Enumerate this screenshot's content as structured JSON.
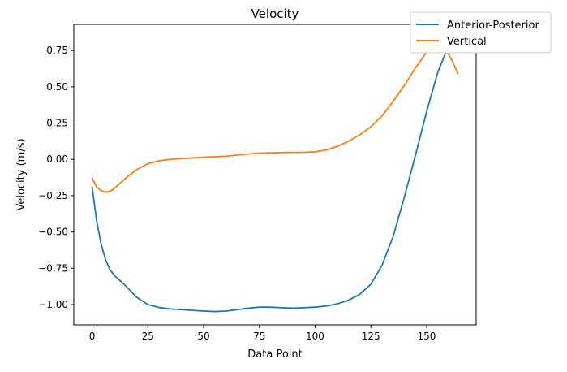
{
  "chart_data": {
    "type": "line",
    "title": "Velocity",
    "xlabel": "Data Point",
    "ylabel": "Velocity (m/s)",
    "xlim": [
      -8.2,
      172.2
    ],
    "ylim": [
      -1.14,
      0.93
    ],
    "x_ticks": [
      0,
      25,
      50,
      75,
      100,
      125,
      150
    ],
    "y_ticks": [
      -1.0,
      -0.75,
      -0.5,
      -0.25,
      0.0,
      0.25,
      0.5,
      0.75
    ],
    "x_tick_labels": [
      "0",
      "25",
      "50",
      "75",
      "100",
      "125",
      "150"
    ],
    "y_tick_labels": [
      "−1.00",
      "−0.75",
      "−0.50",
      "−0.25",
      "0.00",
      "0.25",
      "0.50",
      "0.75"
    ],
    "grid": false,
    "legend_position": "top-right",
    "series": [
      {
        "name": "Anterior-Posterior",
        "color": "#1f77b4",
        "x": [
          0,
          2,
          4,
          6,
          8,
          10,
          15,
          20,
          25,
          30,
          35,
          40,
          45,
          50,
          55,
          60,
          65,
          70,
          75,
          80,
          85,
          90,
          95,
          100,
          105,
          110,
          115,
          120,
          125,
          130,
          135,
          140,
          145,
          150,
          155,
          160,
          163
        ],
        "y": [
          -0.19,
          -0.42,
          -0.58,
          -0.69,
          -0.76,
          -0.8,
          -0.87,
          -0.95,
          -1.0,
          -1.02,
          -1.03,
          -1.035,
          -1.04,
          -1.045,
          -1.048,
          -1.045,
          -1.035,
          -1.025,
          -1.018,
          -1.018,
          -1.022,
          -1.025,
          -1.022,
          -1.018,
          -1.01,
          -0.995,
          -0.97,
          -0.93,
          -0.86,
          -0.73,
          -0.53,
          -0.26,
          0.03,
          0.33,
          0.6,
          0.79,
          0.8
        ]
      },
      {
        "name": "Vertical",
        "color": "#ff7f0e",
        "x": [
          0,
          2,
          4,
          6,
          8,
          10,
          15,
          20,
          25,
          30,
          35,
          40,
          45,
          50,
          55,
          60,
          65,
          70,
          75,
          80,
          85,
          90,
          95,
          100,
          105,
          110,
          115,
          120,
          125,
          130,
          135,
          140,
          145,
          150,
          155,
          158,
          160,
          162,
          164
        ],
        "y": [
          -0.13,
          -0.19,
          -0.215,
          -0.225,
          -0.22,
          -0.2,
          -0.13,
          -0.07,
          -0.03,
          -0.01,
          0.0,
          0.005,
          0.01,
          0.015,
          0.018,
          0.022,
          0.03,
          0.037,
          0.043,
          0.045,
          0.047,
          0.048,
          0.049,
          0.052,
          0.065,
          0.09,
          0.125,
          0.17,
          0.225,
          0.3,
          0.4,
          0.51,
          0.63,
          0.74,
          0.78,
          0.76,
          0.72,
          0.66,
          0.59
        ]
      }
    ]
  }
}
